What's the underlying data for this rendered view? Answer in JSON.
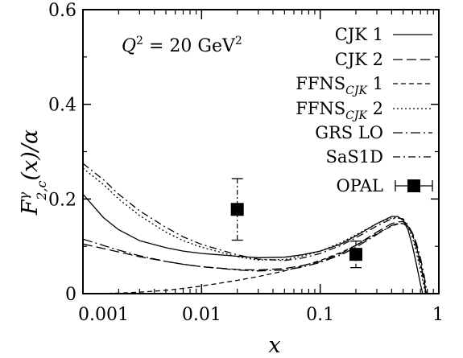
{
  "chart_data": {
    "type": "line",
    "xlabel": "x",
    "ylabel": "F^γ_{2,c}(x)/α",
    "xscale": "log",
    "xlim": [
      0.001,
      1
    ],
    "ylim": [
      0,
      0.6
    ],
    "x_ticks": [
      0.001,
      0.01,
      0.1,
      1
    ],
    "x_tick_labels": [
      "0.001",
      "0.01",
      "0.1",
      "1"
    ],
    "y_ticks": [
      0,
      0.2,
      0.4,
      0.6
    ],
    "y_tick_labels": [
      "0",
      "0.2",
      "0.4",
      "0.6"
    ],
    "annotation": "Q² = 20 GeV²",
    "legend_position": "top-right",
    "series": [
      {
        "name": "CJK 1",
        "dash": "solid",
        "points": [
          [
            0.001,
            0.21
          ],
          [
            0.0015,
            0.16
          ],
          [
            0.002,
            0.135
          ],
          [
            0.003,
            0.112
          ],
          [
            0.005,
            0.097
          ],
          [
            0.007,
            0.09
          ],
          [
            0.01,
            0.085
          ],
          [
            0.02,
            0.079
          ],
          [
            0.03,
            0.076
          ],
          [
            0.05,
            0.077
          ],
          [
            0.07,
            0.082
          ],
          [
            0.1,
            0.09
          ],
          [
            0.15,
            0.105
          ],
          [
            0.2,
            0.122
          ],
          [
            0.3,
            0.148
          ],
          [
            0.4,
            0.163
          ],
          [
            0.45,
            0.163
          ],
          [
            0.5,
            0.155
          ],
          [
            0.55,
            0.135
          ],
          [
            0.6,
            0.1
          ],
          [
            0.65,
            0.06
          ],
          [
            0.7,
            0.02
          ],
          [
            0.73,
            0
          ]
        ]
      },
      {
        "name": "CJK 2",
        "dash": "long-dash",
        "points": [
          [
            0.001,
            0.105
          ],
          [
            0.002,
            0.088
          ],
          [
            0.003,
            0.078
          ],
          [
            0.005,
            0.068
          ],
          [
            0.007,
            0.062
          ],
          [
            0.01,
            0.057
          ],
          [
            0.02,
            0.051
          ],
          [
            0.03,
            0.05
          ],
          [
            0.05,
            0.053
          ],
          [
            0.07,
            0.059
          ],
          [
            0.1,
            0.068
          ],
          [
            0.15,
            0.085
          ],
          [
            0.2,
            0.102
          ],
          [
            0.3,
            0.13
          ],
          [
            0.4,
            0.148
          ],
          [
            0.45,
            0.152
          ],
          [
            0.5,
            0.152
          ],
          [
            0.55,
            0.145
          ],
          [
            0.6,
            0.128
          ],
          [
            0.65,
            0.1
          ],
          [
            0.7,
            0.065
          ],
          [
            0.75,
            0.03
          ],
          [
            0.78,
            0
          ]
        ]
      },
      {
        "name": "FFNS_CJK 1",
        "dash": "dash",
        "points": [
          [
            0.001,
            0
          ],
          [
            0.002,
            0.001
          ],
          [
            0.003,
            0.003
          ],
          [
            0.005,
            0.007
          ],
          [
            0.007,
            0.011
          ],
          [
            0.01,
            0.016
          ],
          [
            0.02,
            0.028
          ],
          [
            0.03,
            0.036
          ],
          [
            0.05,
            0.048
          ],
          [
            0.07,
            0.058
          ],
          [
            0.1,
            0.07
          ],
          [
            0.15,
            0.087
          ],
          [
            0.2,
            0.102
          ],
          [
            0.3,
            0.127
          ],
          [
            0.4,
            0.143
          ],
          [
            0.45,
            0.147
          ],
          [
            0.5,
            0.148
          ],
          [
            0.55,
            0.142
          ],
          [
            0.6,
            0.125
          ],
          [
            0.65,
            0.098
          ],
          [
            0.7,
            0.065
          ],
          [
            0.75,
            0.03
          ],
          [
            0.78,
            0
          ]
        ]
      },
      {
        "name": "FFNS_CJK 2",
        "dash": "dot",
        "points": [
          [
            0.001,
            0.265
          ],
          [
            0.0015,
            0.23
          ],
          [
            0.002,
            0.2
          ],
          [
            0.003,
            0.165
          ],
          [
            0.005,
            0.13
          ],
          [
            0.007,
            0.112
          ],
          [
            0.01,
            0.098
          ],
          [
            0.02,
            0.078
          ],
          [
            0.03,
            0.071
          ],
          [
            0.05,
            0.072
          ],
          [
            0.07,
            0.079
          ],
          [
            0.1,
            0.09
          ],
          [
            0.15,
            0.108
          ],
          [
            0.2,
            0.124
          ],
          [
            0.3,
            0.148
          ],
          [
            0.4,
            0.16
          ],
          [
            0.45,
            0.161
          ],
          [
            0.5,
            0.156
          ],
          [
            0.55,
            0.142
          ],
          [
            0.6,
            0.118
          ],
          [
            0.65,
            0.085
          ],
          [
            0.7,
            0.05
          ],
          [
            0.75,
            0.015
          ],
          [
            0.77,
            0
          ]
        ]
      },
      {
        "name": "GRS LO",
        "dash": "dash-dot",
        "points": [
          [
            0.001,
            0.115
          ],
          [
            0.002,
            0.092
          ],
          [
            0.003,
            0.08
          ],
          [
            0.005,
            0.068
          ],
          [
            0.007,
            0.062
          ],
          [
            0.01,
            0.057
          ],
          [
            0.02,
            0.05
          ],
          [
            0.03,
            0.048
          ],
          [
            0.05,
            0.05
          ],
          [
            0.07,
            0.056
          ],
          [
            0.1,
            0.066
          ],
          [
            0.15,
            0.082
          ],
          [
            0.2,
            0.098
          ],
          [
            0.3,
            0.125
          ],
          [
            0.4,
            0.144
          ],
          [
            0.45,
            0.148
          ],
          [
            0.5,
            0.148
          ],
          [
            0.55,
            0.142
          ],
          [
            0.6,
            0.128
          ],
          [
            0.65,
            0.105
          ],
          [
            0.7,
            0.075
          ],
          [
            0.75,
            0.04
          ],
          [
            0.78,
            0.015
          ],
          [
            0.8,
            0
          ]
        ]
      },
      {
        "name": "SaS1D",
        "dash": "long-dash-dot",
        "points": [
          [
            0.001,
            0.275
          ],
          [
            0.0015,
            0.24
          ],
          [
            0.002,
            0.21
          ],
          [
            0.003,
            0.175
          ],
          [
            0.005,
            0.14
          ],
          [
            0.007,
            0.12
          ],
          [
            0.01,
            0.104
          ],
          [
            0.02,
            0.082
          ],
          [
            0.03,
            0.073
          ],
          [
            0.05,
            0.07
          ],
          [
            0.07,
            0.075
          ],
          [
            0.1,
            0.085
          ],
          [
            0.15,
            0.102
          ],
          [
            0.2,
            0.118
          ],
          [
            0.3,
            0.143
          ],
          [
            0.4,
            0.158
          ],
          [
            0.45,
            0.16
          ],
          [
            0.5,
            0.158
          ],
          [
            0.55,
            0.145
          ],
          [
            0.6,
            0.125
          ],
          [
            0.65,
            0.095
          ],
          [
            0.7,
            0.06
          ],
          [
            0.75,
            0.025
          ],
          [
            0.78,
            0
          ]
        ]
      }
    ],
    "data_points": {
      "name": "OPAL",
      "points": [
        {
          "x": 0.02,
          "y": 0.178,
          "y_err_low": 0.065,
          "y_err_high": 0.065
        },
        {
          "x": 0.2,
          "y": 0.083,
          "y_err_low": 0.028,
          "y_err_high": 0.028
        }
      ]
    }
  },
  "colors": {
    "axis": "#000000",
    "line": "#000000",
    "background": "#ffffff"
  }
}
